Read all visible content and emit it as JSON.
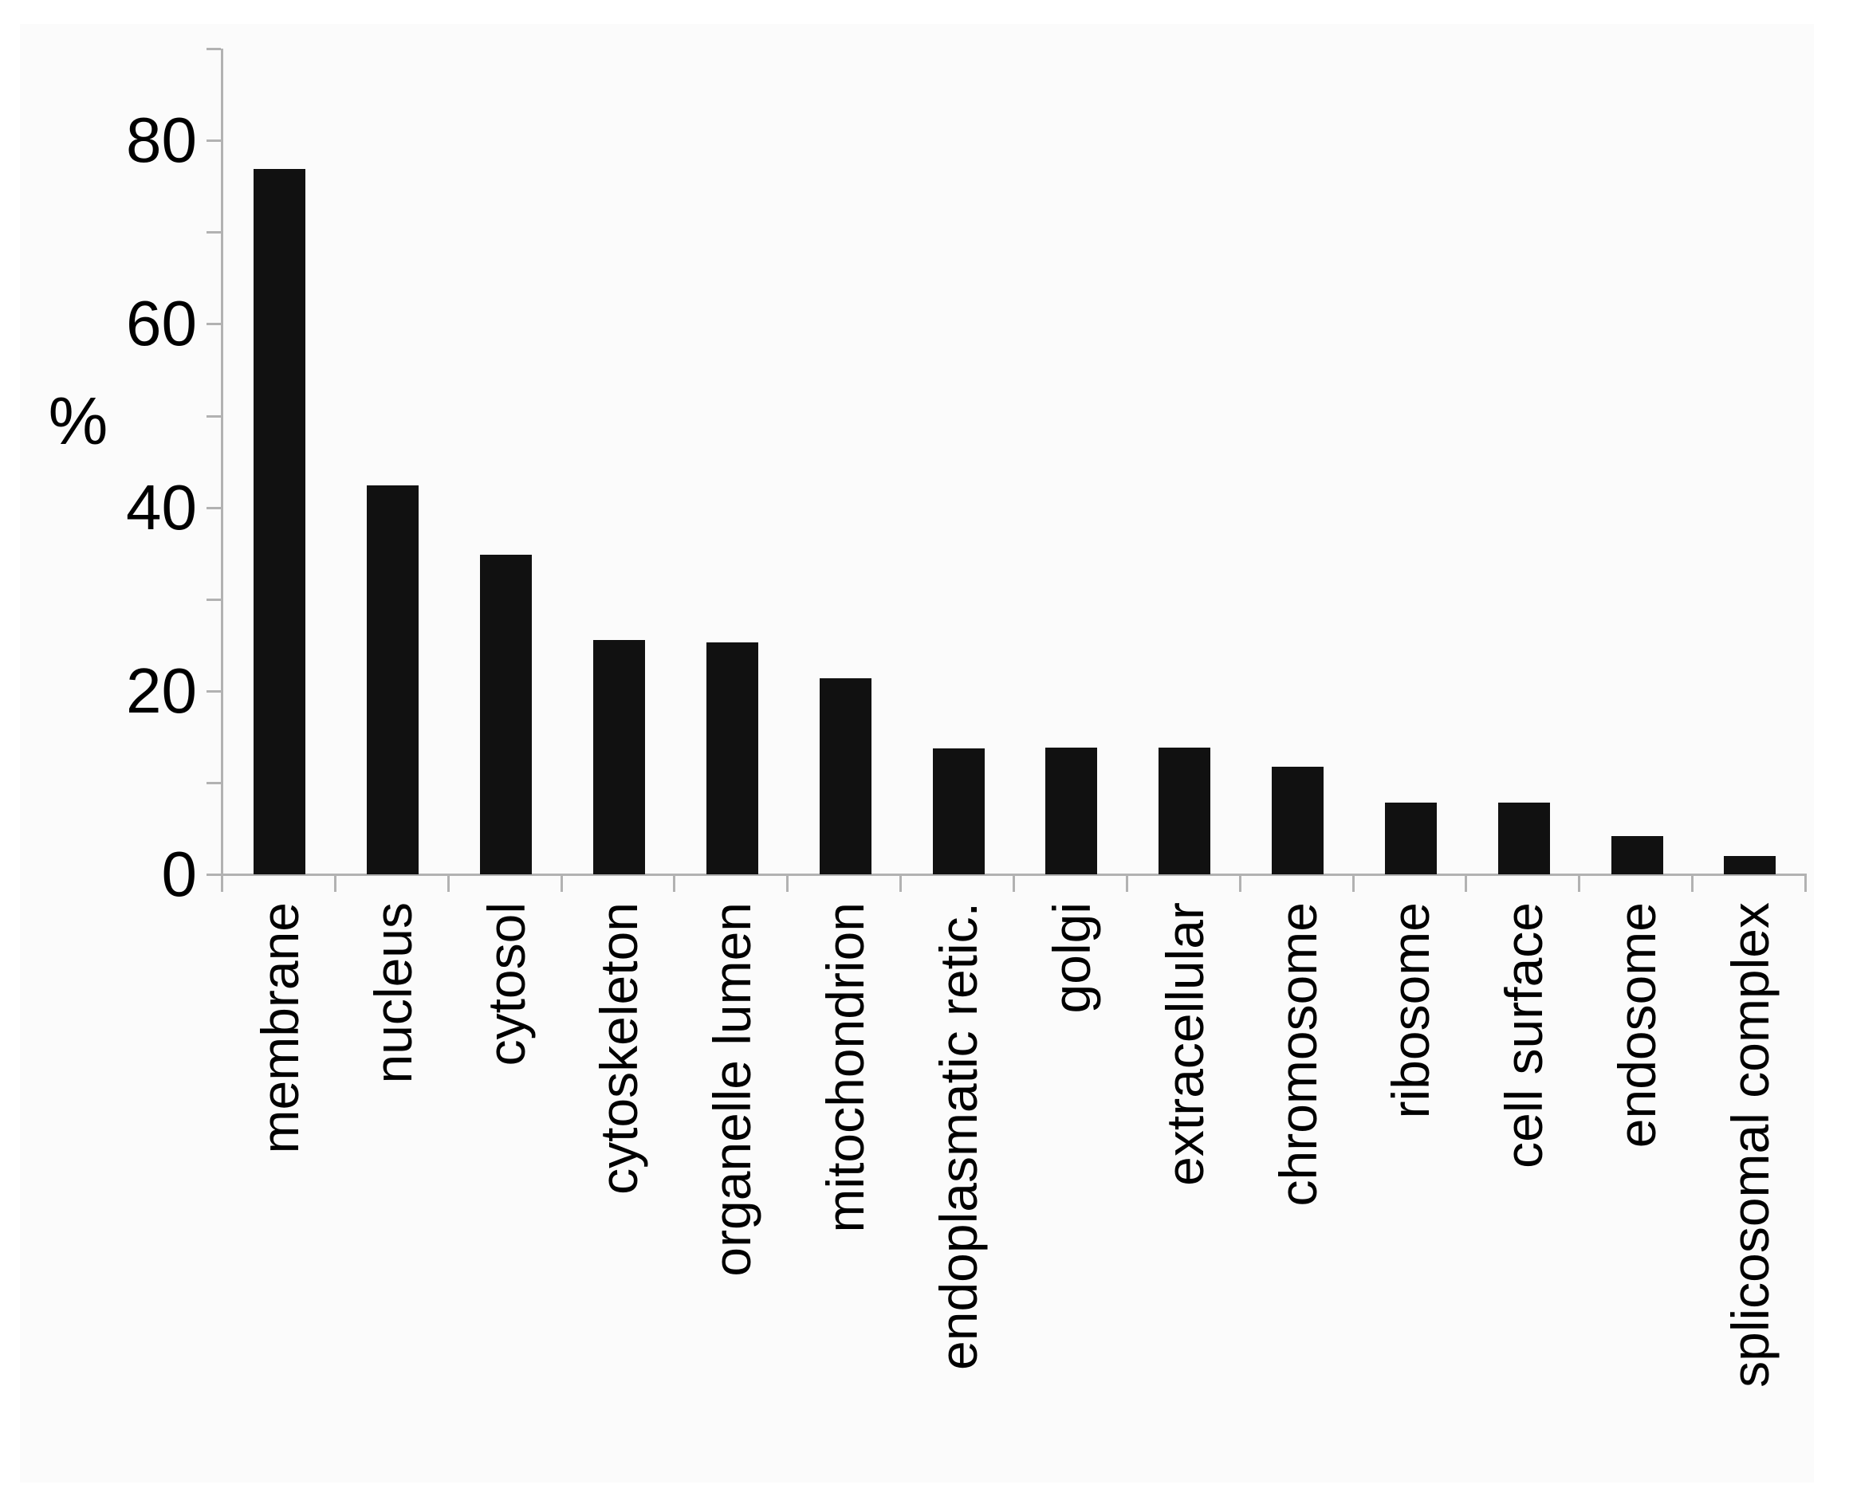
{
  "figure": {
    "background": "#ffffff",
    "panel_background": "#fbfbfb"
  },
  "chart_data": {
    "type": "bar",
    "title": "",
    "xlabel": "",
    "ylabel": "%",
    "categories": [
      "membrane",
      "nucleus",
      "cytosol",
      "cytoskeleton",
      "organelle lumen",
      "mitochondrion",
      "endoplasmatic retic.",
      "golgi",
      "extracellular",
      "chromosome",
      "ribosome",
      "cell surface",
      "endosome",
      "splicosomal complex"
    ],
    "values": [
      76.9,
      42.4,
      34.8,
      25.5,
      25.3,
      21.4,
      13.7,
      13.8,
      13.8,
      11.7,
      7.8,
      7.8,
      4.2,
      2.0
    ],
    "ylim": [
      0,
      90
    ],
    "yticks_major": [
      0,
      20,
      40,
      60,
      80
    ],
    "yticks_minor": [
      10,
      30,
      50,
      70,
      90
    ],
    "grid": false,
    "legend": null,
    "bar_color": "#111111",
    "axis_color": "#b2b2b2",
    "text_color": "#000000"
  }
}
